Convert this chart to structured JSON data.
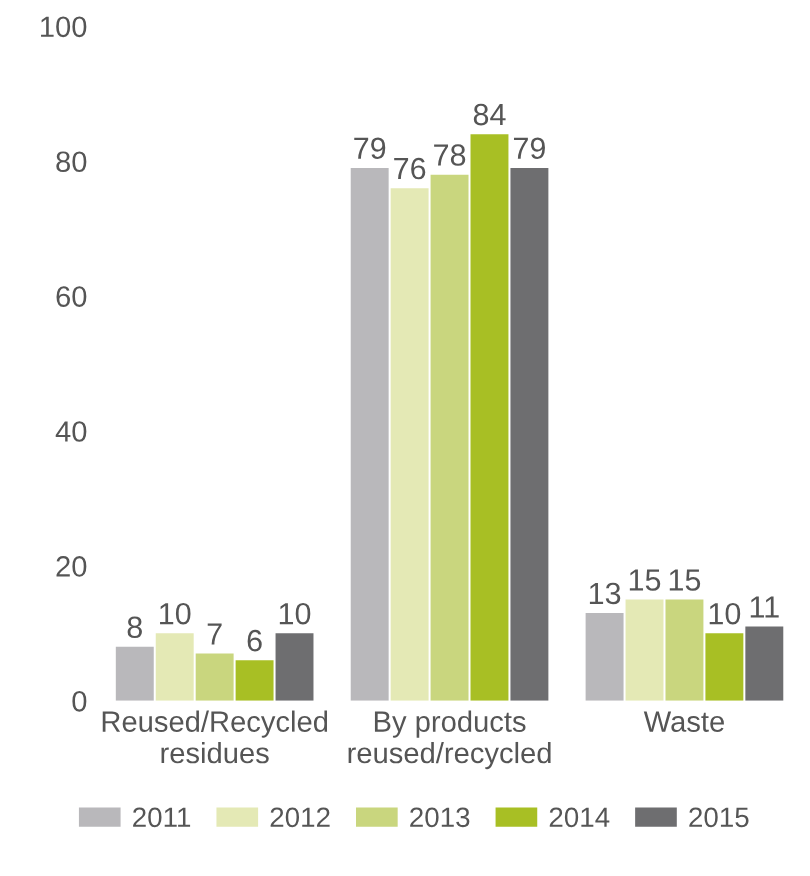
{
  "chart_data": {
    "type": "bar",
    "categories": [
      "Reused/Recycled\nresidues",
      "By products\nreused/recycled",
      "Waste"
    ],
    "series": [
      {
        "name": "2011",
        "color": "#b9b8bb",
        "values": [
          8,
          79,
          13
        ]
      },
      {
        "name": "2012",
        "color": "#e4e9b5",
        "values": [
          10,
          76,
          15
        ]
      },
      {
        "name": "2013",
        "color": "#c9d67e",
        "values": [
          7,
          78,
          15
        ]
      },
      {
        "name": "2014",
        "color": "#a8bf24",
        "values": [
          6,
          84,
          10
        ]
      },
      {
        "name": "2015",
        "color": "#6e6e70",
        "values": [
          10,
          79,
          11
        ]
      }
    ],
    "ylim": [
      0,
      100
    ],
    "yticks": [
      0,
      20,
      40,
      60,
      80,
      100
    ],
    "data_labels": true,
    "grid": false,
    "legend": "bottom"
  }
}
